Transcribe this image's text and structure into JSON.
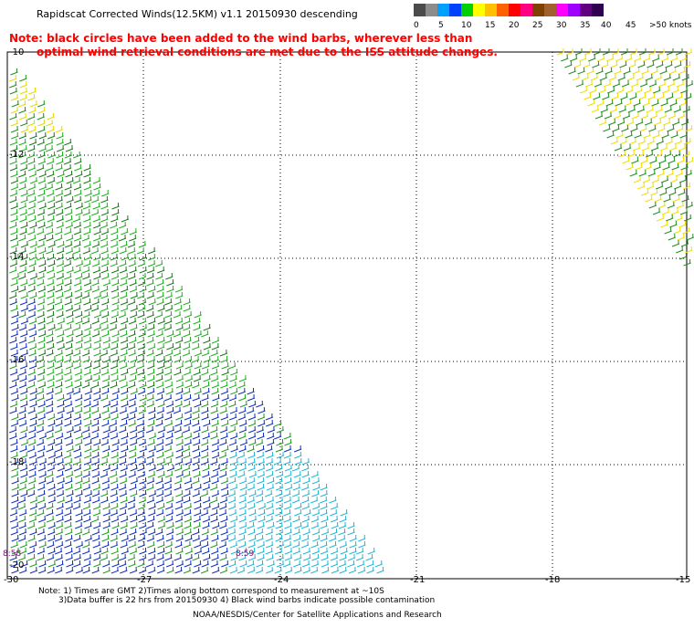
{
  "title": "Rapidscat Corrected Winds(12.5KM) v1.1 20150930 descending",
  "note_lines": [
    "Note: black circles have been added to the wind barbs, wherever less than",
    "optimal wind retrieval conditions are met due to the ISS attitude changes."
  ],
  "legend": {
    "labels": [
      "0",
      "5",
      "10",
      "15",
      "20",
      "25",
      "30",
      "35",
      "40",
      "45",
      ">50 knots"
    ],
    "colors": [
      "#4b4b4b",
      "#8c8c8c",
      "#00a0ff",
      "#0040ff",
      "#00d000",
      "#ffff00",
      "#ffc000",
      "#ff6000",
      "#ff0000",
      "#ff0080",
      "#804000",
      "#a06030",
      "#ff00ff",
      "#a000ff",
      "#600080",
      "#300050"
    ]
  },
  "axes": {
    "lat_labels": [
      "-10",
      "-12",
      "-14",
      "-16",
      "-18",
      "-20"
    ],
    "lon_labels": [
      "-30",
      "-27",
      "-24",
      "-21",
      "-18",
      "-15"
    ]
  },
  "time_labels": [
    "8:58",
    "8:59"
  ],
  "footer": {
    "line1": "Note: 1) Times are GMT 2)Times along bottom correspond to measurement at ~10S",
    "line2": "3)Data buffer is 22 hrs from 20150930 4) Black wind barbs indicate possible contamination",
    "line3": "NOAA/NESDIS/Center for Satellite Applications and Research"
  }
}
